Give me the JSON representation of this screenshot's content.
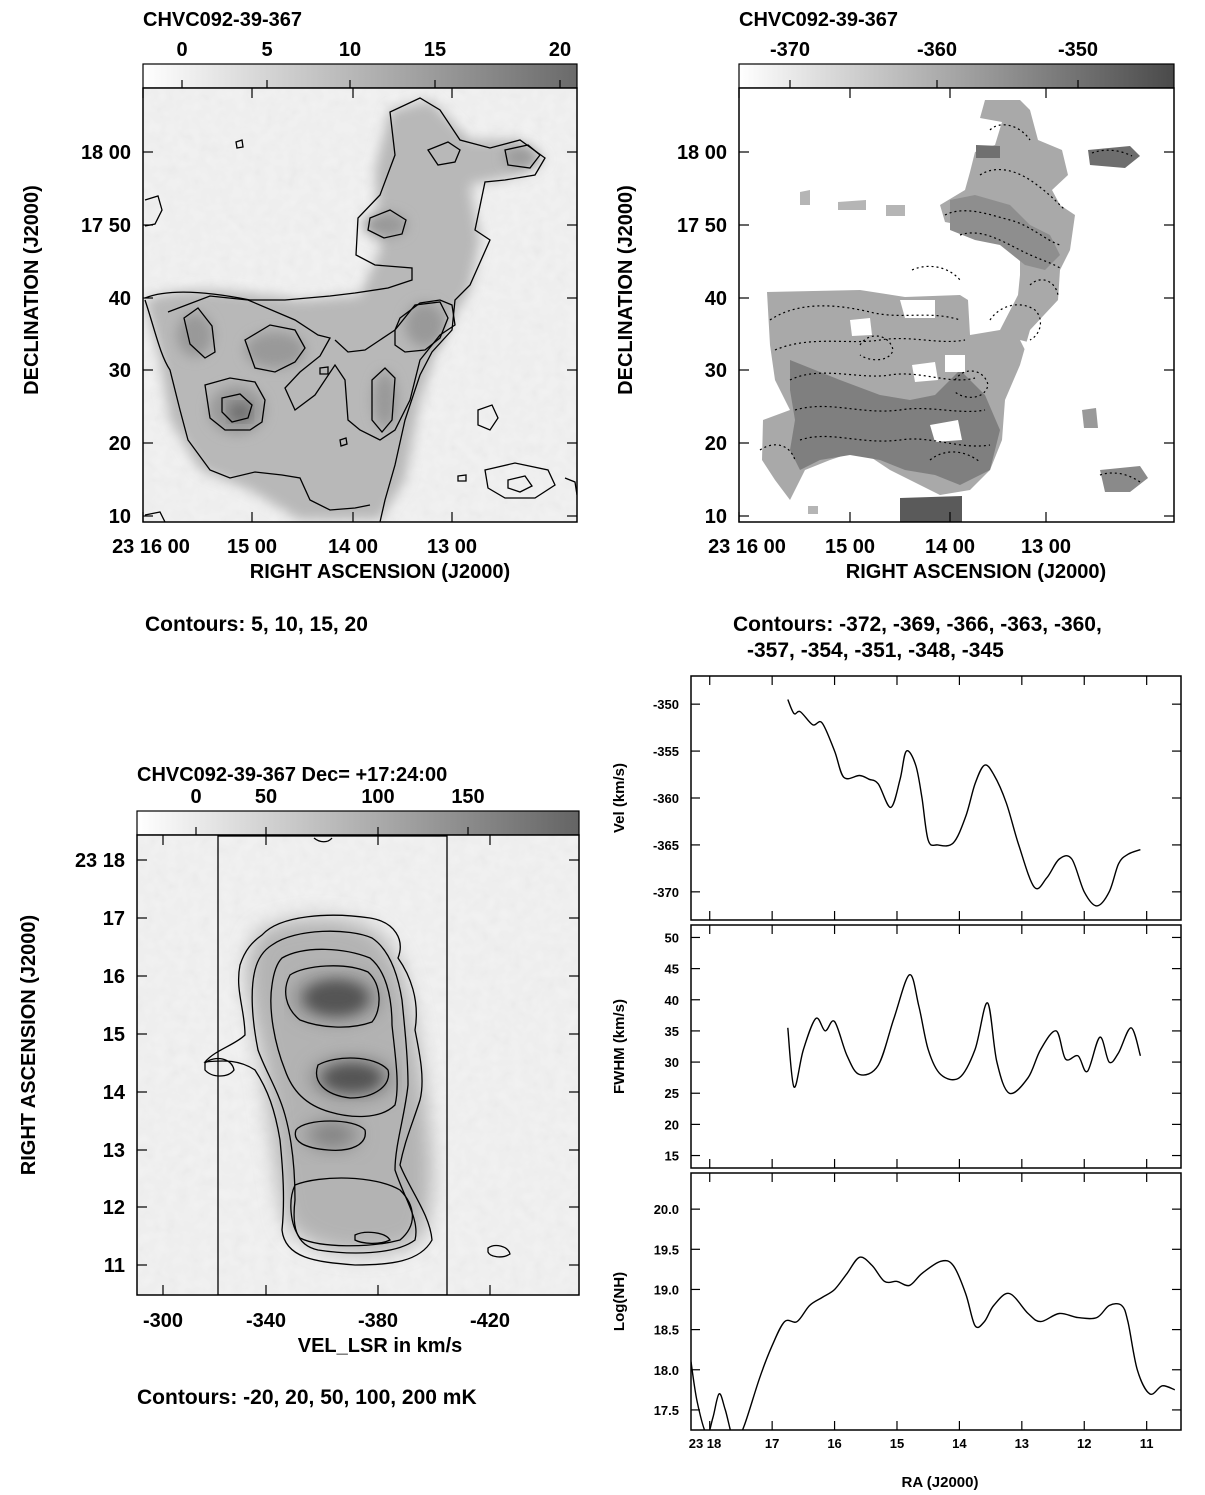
{
  "panels": {
    "p1": {
      "title": "CHVC092-39-367",
      "colorbar_ticks": [
        "0",
        "5",
        "10",
        "15",
        "20"
      ],
      "y_ticks": [
        "18 00",
        "17 50",
        "40",
        "30",
        "20",
        "10"
      ],
      "x_ticks": [
        "23 16 00",
        "15 00",
        "14 00",
        "13 00"
      ],
      "xlabel": "RIGHT ASCENSION (J2000)",
      "ylabel": "DECLINATION (J2000)",
      "caption": "Contours: 5, 10, 15, 20"
    },
    "p2": {
      "title": "CHVC092-39-367",
      "colorbar_ticks": [
        "-370",
        "-360",
        "-350"
      ],
      "y_ticks": [
        "18 00",
        "17 50",
        "40",
        "30",
        "20",
        "10"
      ],
      "x_ticks": [
        "23 16 00",
        "15 00",
        "14 00",
        "13 00"
      ],
      "xlabel": "RIGHT ASCENSION (J2000)",
      "ylabel": "DECLINATION (J2000)",
      "caption_line1": "Contours: -372, -369, -366, -363, -360,",
      "caption_line2": "-357, -354, -351, -348, -345"
    },
    "p3": {
      "title": "CHVC092-39-367   Dec= +17:24:00",
      "colorbar_ticks": [
        "0",
        "50",
        "100",
        "150"
      ],
      "y_ticks": [
        "23 18",
        "17",
        "16",
        "15",
        "14",
        "13",
        "12",
        "11"
      ],
      "x_ticks": [
        "-300",
        "-340",
        "-380",
        "-420"
      ],
      "xlabel": "VEL_LSR in km/s",
      "ylabel": "RIGHT ASCENSION (J2000)",
      "caption": "Contours: -20, 20, 50, 100, 200 mK"
    },
    "p4": {
      "xlabel": "RA (J2000)",
      "x_ticks": [
        "23 18",
        "17",
        "16",
        "15",
        "14",
        "13",
        "12",
        "11"
      ]
    }
  },
  "chart_data": [
    {
      "type": "line",
      "ylabel": "Vel (km/s)",
      "ylim": [
        -373,
        -347
      ],
      "y_ticks": [
        -350,
        -355,
        -360,
        -365,
        -370
      ],
      "x": [
        16.75,
        16.65,
        16.55,
        16.35,
        16.2,
        16.0,
        15.85,
        15.6,
        15.45,
        15.3,
        15.1,
        14.95,
        14.85,
        14.7,
        14.6,
        14.5,
        14.35,
        14.1,
        13.9,
        13.75,
        13.6,
        13.45,
        13.25,
        13.05,
        12.8,
        12.6,
        12.4,
        12.2,
        12.0,
        11.8,
        11.6,
        11.45,
        11.3,
        11.1
      ],
      "y": [
        -349.5,
        -351.0,
        -350.8,
        -352.2,
        -352.0,
        -355.0,
        -357.8,
        -357.6,
        -358.0,
        -358.5,
        -361.0,
        -358.0,
        -355.0,
        -356.5,
        -360.0,
        -364.5,
        -365.0,
        -364.8,
        -362.0,
        -358.5,
        -356.5,
        -357.5,
        -360.5,
        -365.0,
        -369.5,
        -368.5,
        -366.5,
        -366.5,
        -370.0,
        -371.5,
        -370.0,
        -367.0,
        -366.0,
        -365.5
      ]
    },
    {
      "type": "line",
      "ylabel": "FWHM (km/s)",
      "ylim": [
        13,
        52
      ],
      "y_ticks": [
        15,
        20,
        25,
        30,
        35,
        40,
        45,
        50
      ],
      "x": [
        16.75,
        16.65,
        16.5,
        16.3,
        16.15,
        16.0,
        15.8,
        15.6,
        15.3,
        15.05,
        14.8,
        14.65,
        14.5,
        14.3,
        14.0,
        13.75,
        13.55,
        13.4,
        13.2,
        12.9,
        12.7,
        12.45,
        12.3,
        12.1,
        11.95,
        11.75,
        11.6,
        11.45,
        11.25,
        11.1
      ],
      "y": [
        35.5,
        26.0,
        32.0,
        37.0,
        35.0,
        36.5,
        31.0,
        28.0,
        29.5,
        37.0,
        44.0,
        39.0,
        32.0,
        28.0,
        27.5,
        32.0,
        39.5,
        30.0,
        25.0,
        27.5,
        32.0,
        35.0,
        30.5,
        31.0,
        28.5,
        34.0,
        30.0,
        31.5,
        35.5,
        31.0
      ]
    },
    {
      "type": "line",
      "ylabel": "Log(NH)",
      "ylim": [
        17.25,
        20.45
      ],
      "y_ticks": [
        17.5,
        18.0,
        18.5,
        19.0,
        19.5,
        20.0
      ],
      "x": [
        18.3,
        18.2,
        18.05,
        17.95,
        17.85,
        17.75,
        17.6,
        17.45,
        17.2,
        17.0,
        16.8,
        16.6,
        16.4,
        16.2,
        16.0,
        15.8,
        15.6,
        15.4,
        15.2,
        15.0,
        14.8,
        14.6,
        14.3,
        14.1,
        13.9,
        13.75,
        13.6,
        13.45,
        13.2,
        12.9,
        12.7,
        12.4,
        12.1,
        11.8,
        11.6,
        11.4,
        11.3,
        11.15,
        10.95,
        10.75,
        10.55
      ],
      "y": [
        18.1,
        17.6,
        17.2,
        17.4,
        17.7,
        17.5,
        17.1,
        17.3,
        17.9,
        18.3,
        18.6,
        18.6,
        18.8,
        18.9,
        19.0,
        19.2,
        19.4,
        19.3,
        19.1,
        19.1,
        19.05,
        19.2,
        19.35,
        19.3,
        18.95,
        18.55,
        18.6,
        18.8,
        18.95,
        18.7,
        18.6,
        18.7,
        18.65,
        18.65,
        18.8,
        18.8,
        18.6,
        18.0,
        17.7,
        17.8,
        17.75
      ]
    }
  ]
}
